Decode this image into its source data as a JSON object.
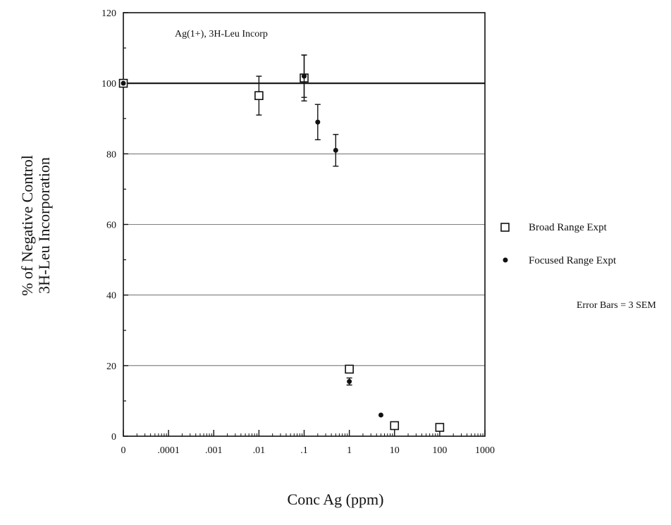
{
  "chart_data": {
    "type": "scatter",
    "annotation": "Ag(1+), 3H-Leu Incorp",
    "xlabel": "Conc Ag (ppm)",
    "ylabel_lines": [
      "% of Negative Control",
      "3H-Leu Incorporation"
    ],
    "x_scale": "log",
    "x_ticks": [
      {
        "value": 0,
        "label": "0"
      },
      {
        "value": 0.0001,
        "label": ".0001"
      },
      {
        "value": 0.001,
        "label": ".001"
      },
      {
        "value": 0.01,
        "label": ".01"
      },
      {
        "value": 0.1,
        "label": ".1"
      },
      {
        "value": 1,
        "label": "1"
      },
      {
        "value": 10,
        "label": "10"
      },
      {
        "value": 100,
        "label": "100"
      },
      {
        "value": 1000,
        "label": "1000"
      }
    ],
    "ylim": [
      0,
      120
    ],
    "y_ticks": [
      0,
      20,
      40,
      60,
      80,
      100,
      120
    ],
    "grid": "horizontal",
    "reference_line": 100,
    "error_note": "Error Bars = 3 SEM",
    "legend_position": "right",
    "series": [
      {
        "name": "Broad Range Expt",
        "marker": "open-square",
        "points": [
          {
            "x": 0,
            "y": 100,
            "err": 0
          },
          {
            "x": 0.01,
            "y": 96.5,
            "err": 5.5
          },
          {
            "x": 0.1,
            "y": 101.5,
            "err": 6.5
          },
          {
            "x": 1,
            "y": 19,
            "err": 0
          },
          {
            "x": 10,
            "y": 3,
            "err": 0
          },
          {
            "x": 100,
            "y": 2.5,
            "err": 0
          }
        ]
      },
      {
        "name": "Focused Range Expt",
        "marker": "filled-circle",
        "points": [
          {
            "x": 0,
            "y": 100,
            "err": 0
          },
          {
            "x": 0.1,
            "y": 102,
            "err": 6
          },
          {
            "x": 0.2,
            "y": 89,
            "err": 5
          },
          {
            "x": 0.5,
            "y": 81,
            "err": 4.5
          },
          {
            "x": 1,
            "y": 15.5,
            "err": 1
          },
          {
            "x": 5,
            "y": 6,
            "err": 0
          }
        ]
      }
    ]
  }
}
